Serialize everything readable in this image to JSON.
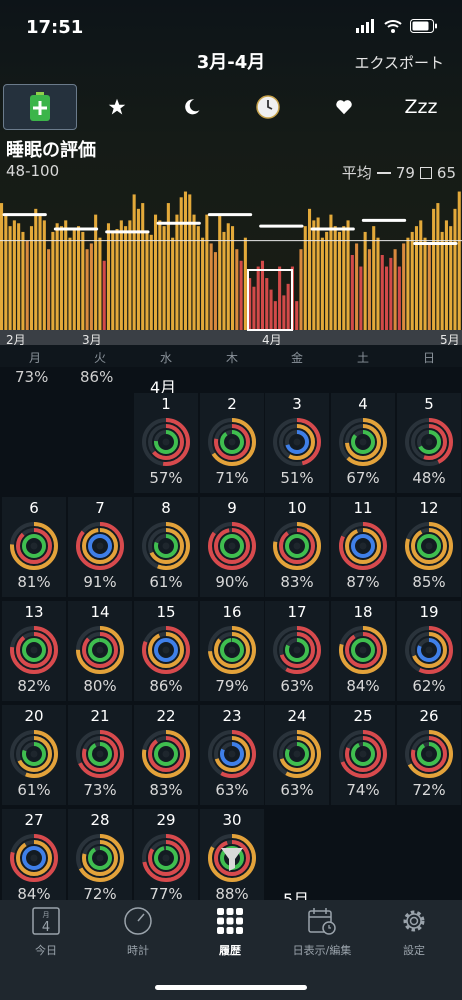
{
  "status": {
    "time": "17:51"
  },
  "nav": {
    "title": "3月-4月",
    "export": "エクスポート"
  },
  "icons": [
    "battery-plus-icon",
    "star-icon",
    "moon-icon",
    "clock-icon",
    "heart-icon",
    "zzz-icon"
  ],
  "zzz_label": "Zzz",
  "section": {
    "title": "睡眠の評価",
    "range": "48-100",
    "avg_label": "平均",
    "avg_value": "79",
    "box_value": "65"
  },
  "chart_data": {
    "type": "bar",
    "title": "睡眠の評価",
    "y_range_label": "48-100",
    "ylim": [
      48,
      100
    ],
    "average": 79,
    "x_tick_labels": [
      "2月",
      "3月",
      "4月",
      "5月"
    ],
    "values": [
      92,
      88,
      84,
      86,
      85,
      82,
      79,
      84,
      90,
      88,
      86,
      76,
      82,
      85,
      84,
      86,
      80,
      83,
      84,
      82,
      76,
      78,
      88,
      80,
      72,
      85,
      82,
      83,
      86,
      84,
      86,
      95,
      90,
      92,
      82,
      81,
      88,
      86,
      84,
      92,
      80,
      88,
      94,
      96,
      95,
      88,
      84,
      80,
      88,
      78,
      75,
      88,
      82,
      85,
      84,
      76,
      72,
      80,
      66,
      63,
      70,
      72,
      66,
      62,
      58,
      70,
      60,
      64,
      70,
      58,
      76,
      84,
      90,
      86,
      87,
      80,
      82,
      88,
      84,
      82,
      84,
      86,
      74,
      78,
      70,
      82,
      76,
      84,
      80,
      74,
      70,
      73,
      76,
      70,
      78,
      80,
      82,
      84,
      86,
      80,
      78,
      90,
      92,
      82,
      86,
      84,
      90,
      96
    ],
    "weekly_avg_ticks": [
      88,
      83,
      82,
      85,
      88,
      84,
      83,
      86,
      78
    ],
    "day_of_week": [
      "月",
      "火",
      "水",
      "木",
      "金",
      "土",
      "日"
    ]
  },
  "calendar": {
    "prev_month_pcts": [
      "73%",
      "86%"
    ],
    "month_label": "4月",
    "next_month_label": "5月",
    "days": [
      {
        "d": "1",
        "p": "57%"
      },
      {
        "d": "2",
        "p": "71%"
      },
      {
        "d": "3",
        "p": "51%"
      },
      {
        "d": "4",
        "p": "67%"
      },
      {
        "d": "5",
        "p": "48%"
      },
      {
        "d": "6",
        "p": "81%"
      },
      {
        "d": "7",
        "p": "91%"
      },
      {
        "d": "8",
        "p": "61%"
      },
      {
        "d": "9",
        "p": "90%"
      },
      {
        "d": "10",
        "p": "83%"
      },
      {
        "d": "11",
        "p": "87%"
      },
      {
        "d": "12",
        "p": "85%"
      },
      {
        "d": "13",
        "p": "82%"
      },
      {
        "d": "14",
        "p": "80%"
      },
      {
        "d": "15",
        "p": "86%"
      },
      {
        "d": "16",
        "p": "79%"
      },
      {
        "d": "17",
        "p": "63%"
      },
      {
        "d": "18",
        "p": "84%"
      },
      {
        "d": "19",
        "p": "62%"
      },
      {
        "d": "20",
        "p": "61%"
      },
      {
        "d": "21",
        "p": "73%"
      },
      {
        "d": "22",
        "p": "83%"
      },
      {
        "d": "23",
        "p": "63%"
      },
      {
        "d": "24",
        "p": "63%"
      },
      {
        "d": "25",
        "p": "74%"
      },
      {
        "d": "26",
        "p": "72%"
      },
      {
        "d": "27",
        "p": "84%"
      },
      {
        "d": "28",
        "p": "72%"
      },
      {
        "d": "29",
        "p": "77%"
      },
      {
        "d": "30",
        "p": "88%"
      }
    ]
  },
  "tabs": [
    {
      "label": "今日",
      "icon": "calendar-today-icon",
      "month": "月",
      "day": "4"
    },
    {
      "label": "時計",
      "icon": "gauge-icon"
    },
    {
      "label": "履歴",
      "icon": "grid-icon"
    },
    {
      "label": "日表示/編集",
      "icon": "calendar-clock-icon"
    },
    {
      "label": "設定",
      "icon": "gear-icon"
    }
  ],
  "colors": {
    "bar_high": "#e3a93a",
    "bar_mid": "#d98a3e",
    "bar_low": "#d24a49",
    "ring_red": "#d84a4d",
    "ring_orange": "#e3a23a",
    "ring_green": "#3fbe4f",
    "ring_blue": "#3f7fe8"
  }
}
